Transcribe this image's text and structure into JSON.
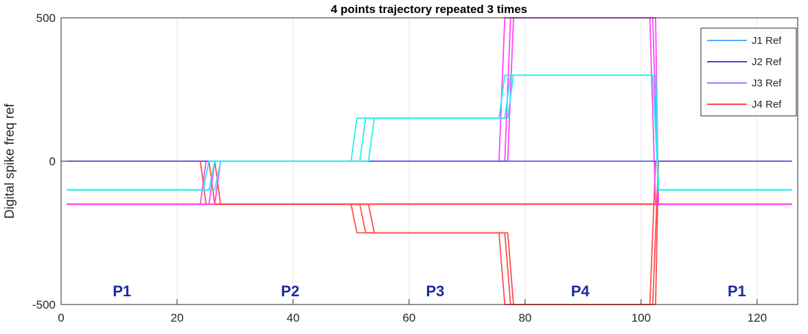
{
  "chart_data": {
    "type": "line",
    "title": "4 points trajectory repeated 3 times",
    "xlabel": "",
    "ylabel": "Digital spike freq ref",
    "xlim": [
      0,
      127
    ],
    "ylim": [
      -500,
      500
    ],
    "xticks": [
      0,
      20,
      40,
      60,
      80,
      100,
      120
    ],
    "yticks": [
      -500,
      0,
      500
    ],
    "grid": "vertical",
    "legend_position": "top-right",
    "legend": [
      {
        "label": "J1 Ref",
        "color": "#55aaff"
      },
      {
        "label": "J2 Ref",
        "color": "#4444dd"
      },
      {
        "label": "J3 Ref",
        "color": "#8888ff"
      },
      {
        "label": "J4 Ref",
        "color": "#ff4444"
      }
    ],
    "phase_labels": [
      {
        "text": "P1",
        "x": 10.5
      },
      {
        "text": "P2",
        "x": 39.5
      },
      {
        "text": "P3",
        "x": 64.5
      },
      {
        "text": "P4",
        "x": 89.5
      },
      {
        "text": "P1",
        "x": 116.5
      }
    ],
    "series": [
      {
        "name": "J4 Ref",
        "color": "#ff4d4d",
        "x": [
          1,
          24,
          25,
          126
        ],
        "y": [
          0,
          0,
          -150,
          -150
        ]
      },
      {
        "name": "J4 Ref",
        "color": "#ff4d4d",
        "x": [
          1,
          25.5,
          26.5,
          126
        ],
        "y": [
          0,
          0,
          -150,
          -150
        ]
      },
      {
        "name": "J4 Ref",
        "color": "#ff4d4d",
        "x": [
          1,
          26.5,
          27.5,
          126
        ],
        "y": [
          0,
          0,
          -150,
          -150
        ]
      },
      {
        "name": "",
        "color": "#ff4d4d",
        "x": [
          1,
          50,
          51,
          75.5,
          76.5,
          101.5,
          102.5,
          126
        ],
        "y": [
          -150,
          -150,
          -250,
          -250,
          -500,
          -500,
          0,
          0
        ]
      },
      {
        "name": "",
        "color": "#ff4d4d",
        "x": [
          1,
          51.5,
          52.5,
          76.5,
          77.5,
          102,
          103,
          126
        ],
        "y": [
          -150,
          -150,
          -250,
          -250,
          -500,
          -500,
          0,
          0
        ]
      },
      {
        "name": "",
        "color": "#ff4d4d",
        "x": [
          1,
          53,
          54,
          77,
          78,
          102.5,
          103,
          126
        ],
        "y": [
          -150,
          -150,
          -250,
          -250,
          -500,
          -500,
          0,
          0
        ]
      },
      {
        "name": "",
        "color": "#ff44ff",
        "x": [
          1,
          24,
          25,
          75.5,
          76.5,
          101.5,
          102.5,
          126
        ],
        "y": [
          -150,
          -150,
          0,
          0,
          500,
          500,
          -150,
          -150
        ]
      },
      {
        "name": "",
        "color": "#ff44ff",
        "x": [
          1,
          25.5,
          26.5,
          76.5,
          77.5,
          102,
          103,
          126
        ],
        "y": [
          -150,
          -150,
          0,
          0,
          500,
          500,
          -150,
          -150
        ]
      },
      {
        "name": "",
        "color": "#ff44ff",
        "x": [
          1,
          26.5,
          27.5,
          77,
          78,
          102.5,
          103,
          126
        ],
        "y": [
          -150,
          -150,
          0,
          0,
          500,
          500,
          -150,
          -150
        ]
      },
      {
        "name": "",
        "color": "#5b5bea",
        "x": [
          1,
          126
        ],
        "y": [
          0,
          0
        ]
      },
      {
        "name": "",
        "color": "#22eeee",
        "x": [
          1,
          24.5,
          25.5,
          50,
          51,
          75.5,
          76.5,
          102,
          103,
          126
        ],
        "y": [
          -100,
          -100,
          0,
          0,
          150,
          150,
          300,
          300,
          -100,
          -100
        ]
      },
      {
        "name": "",
        "color": "#22eeee",
        "x": [
          1,
          25.5,
          26.5,
          51.5,
          52.5,
          76.5,
          77.5,
          102.5,
          103,
          126
        ],
        "y": [
          -100,
          -100,
          0,
          0,
          150,
          150,
          300,
          300,
          -100,
          -100
        ]
      },
      {
        "name": "",
        "color": "#22eeee",
        "x": [
          1,
          26.5,
          27.5,
          53,
          54,
          77,
          78,
          102.5,
          103,
          126
        ],
        "y": [
          -100,
          -100,
          0,
          0,
          150,
          150,
          300,
          300,
          -100,
          -100
        ]
      }
    ]
  }
}
